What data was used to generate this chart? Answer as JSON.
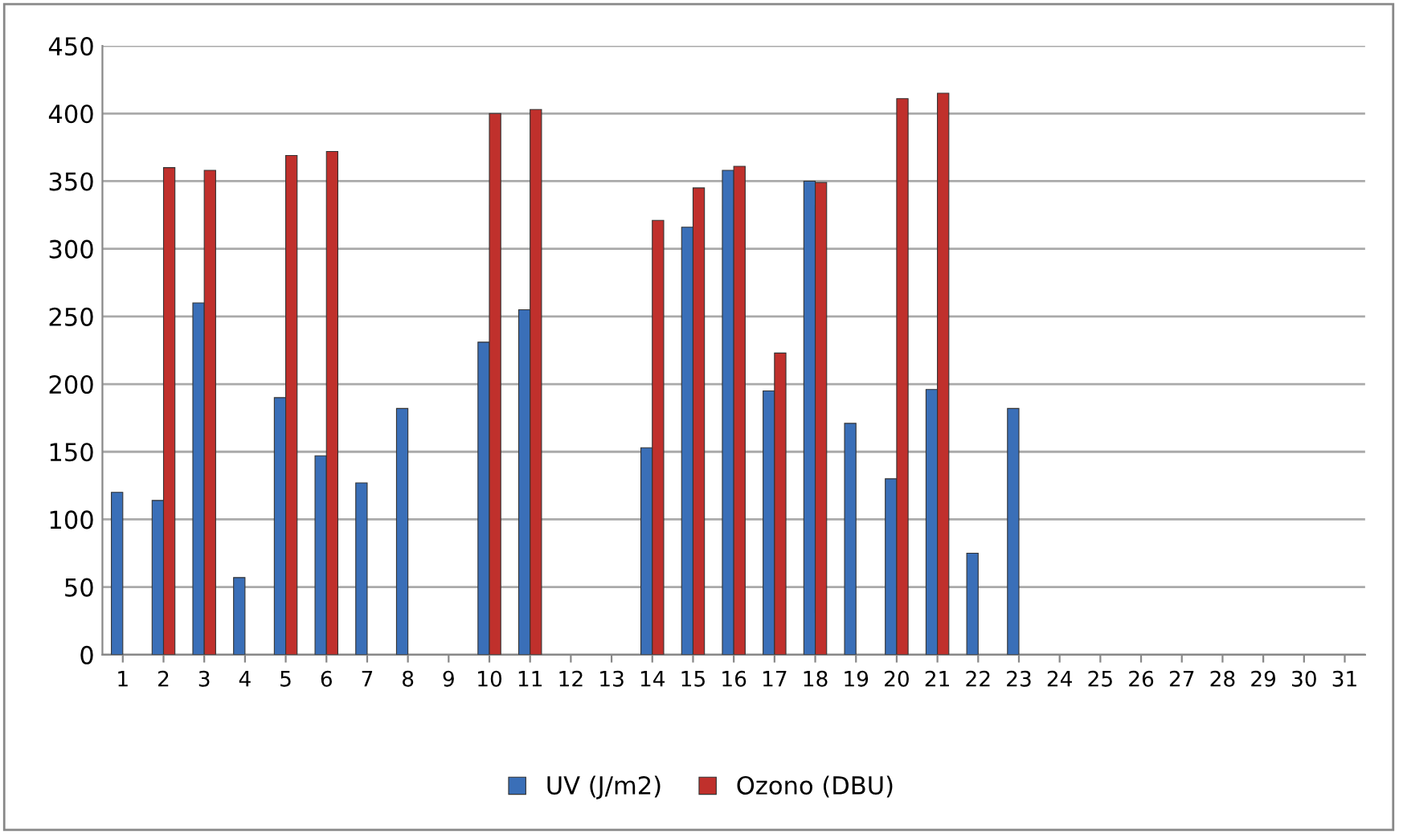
{
  "chart_data": {
    "type": "bar",
    "categories": [
      "1",
      "2",
      "3",
      "4",
      "5",
      "6",
      "7",
      "8",
      "9",
      "10",
      "11",
      "12",
      "13",
      "14",
      "15",
      "16",
      "17",
      "18",
      "19",
      "20",
      "21",
      "22",
      "23",
      "24",
      "25",
      "26",
      "27",
      "28",
      "29",
      "30",
      "31"
    ],
    "series": [
      {
        "name": "UV (J/m2)",
        "color": "#3a6fb8",
        "values": [
          120,
          114,
          260,
          57,
          190,
          147,
          127,
          182,
          null,
          231,
          255,
          null,
          null,
          153,
          316,
          358,
          195,
          350,
          171,
          130,
          196,
          75,
          182,
          null,
          null,
          null,
          null,
          null,
          null,
          null,
          null
        ]
      },
      {
        "name": "Ozono (DBU)",
        "color": "#c0302c",
        "values": [
          null,
          360,
          358,
          null,
          369,
          372,
          null,
          null,
          null,
          400,
          403,
          null,
          null,
          321,
          345,
          361,
          223,
          349,
          null,
          411,
          415,
          null,
          null,
          null,
          null,
          null,
          null,
          null,
          null,
          null,
          null
        ]
      }
    ],
    "ylim": [
      0,
      450
    ],
    "yticks": [
      0,
      50,
      100,
      150,
      200,
      250,
      300,
      350,
      400,
      450
    ],
    "grid": "y",
    "legend": "bottom"
  }
}
